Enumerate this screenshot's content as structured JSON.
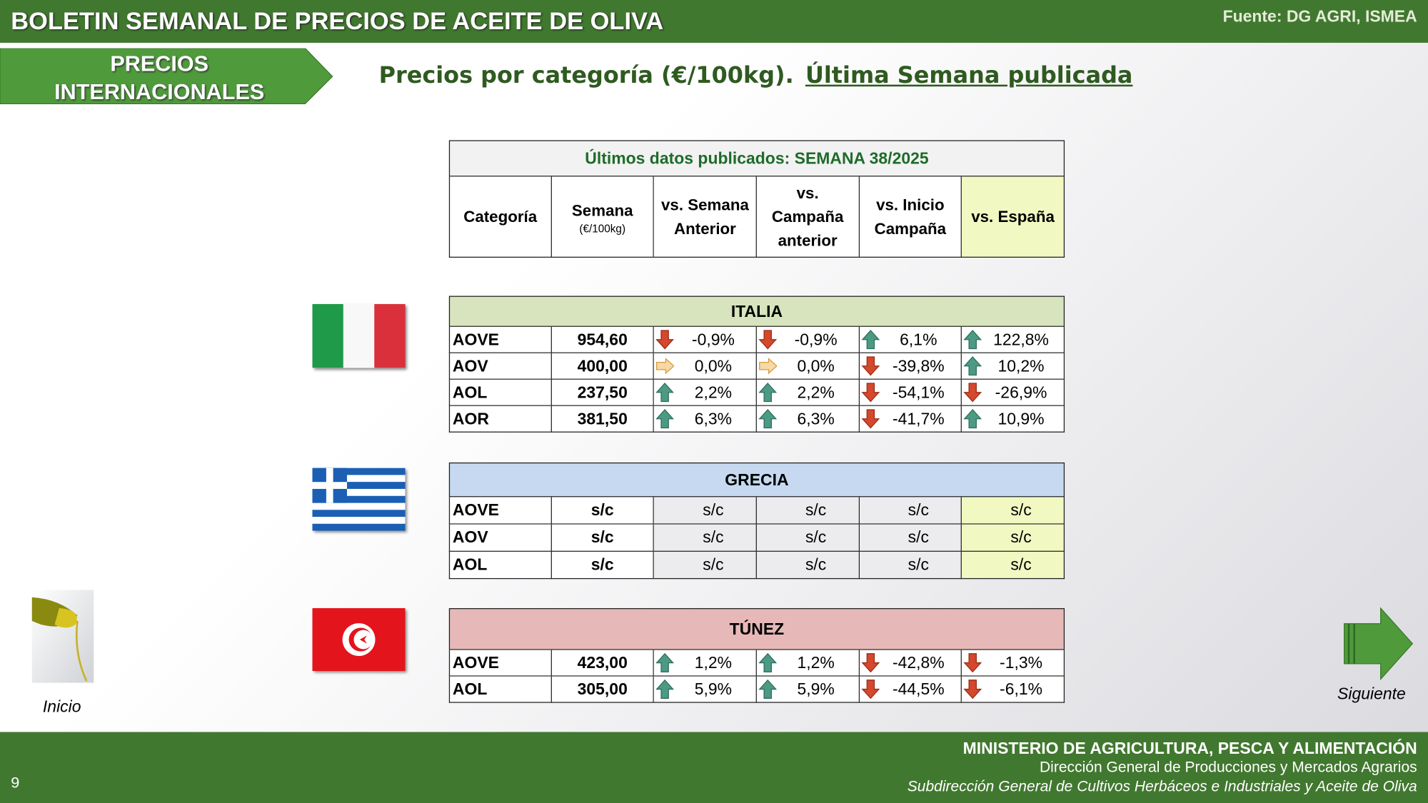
{
  "header": {
    "title": "BOLETIN SEMANAL DE PRECIOS DE ACEITE DE OLIVA",
    "source": "Fuente: DG AGRI, ISMEA"
  },
  "section_tab": [
    "PRECIOS",
    "INTERNACIONALES"
  ],
  "subtitle": {
    "text": "Precios por categoría (€/100kg).",
    "link": "Última Semana publicada"
  },
  "table": {
    "caption": "Últimos datos publicados: SEMANA 38/2025",
    "columns": [
      {
        "label": "Categoría"
      },
      {
        "label": "Semana",
        "sub": "(€/100kg)"
      },
      {
        "label": "vs. Semana Anterior"
      },
      {
        "label": "vs. Campaña anterior"
      },
      {
        "label": "vs. Inicio Campaña"
      },
      {
        "label": "vs. España"
      }
    ],
    "sections": [
      {
        "name": "ITALIA",
        "color": "#d7e4bd",
        "rows": [
          [
            "AOVE",
            "954,60",
            "-0,9%",
            "-0,9%",
            "6,1%",
            "122,8%"
          ],
          [
            "AOV",
            "400,00",
            "0,0%",
            "0,0%",
            "-39,8%",
            "10,2%"
          ],
          [
            "AOL",
            "237,50",
            "2,2%",
            "2,2%",
            "-54,1%",
            "-26,9%"
          ],
          [
            "AOR",
            "381,50",
            "6,3%",
            "6,3%",
            "-41,7%",
            "10,9%"
          ]
        ]
      },
      {
        "name": "GRECIA",
        "color": "#c6d9f1",
        "rows": [
          [
            "AOVE",
            "s/c",
            "s/c",
            "s/c",
            "s/c",
            "s/c"
          ],
          [
            "AOV",
            "s/c",
            "s/c",
            "s/c",
            "s/c",
            "s/c"
          ],
          [
            "AOL",
            "s/c",
            "s/c",
            "s/c",
            "s/c",
            "s/c"
          ]
        ]
      },
      {
        "name": "TÚNEZ",
        "color": "#e6b9b8",
        "rows": [
          [
            "AOVE",
            "423,00",
            "1,2%",
            "1,2%",
            "-42,8%",
            "-1,3%"
          ],
          [
            "AOL",
            "305,00",
            "5,9%",
            "5,9%",
            "-44,5%",
            "-6,1%"
          ]
        ]
      }
    ]
  },
  "nav": {
    "home": "Inicio",
    "next": "Siguiente"
  },
  "footer": {
    "page": "9",
    "ministry": "MINISTERIO DE AGRICULTURA, PESCA Y ALIMENTACIÓN",
    "directorate": "Dirección General de Producciones y Mercados Agrarios",
    "subdirectorate": "Subdirección General de Cultivos Herbáceos e Industriales y Aceite de Oliva"
  }
}
